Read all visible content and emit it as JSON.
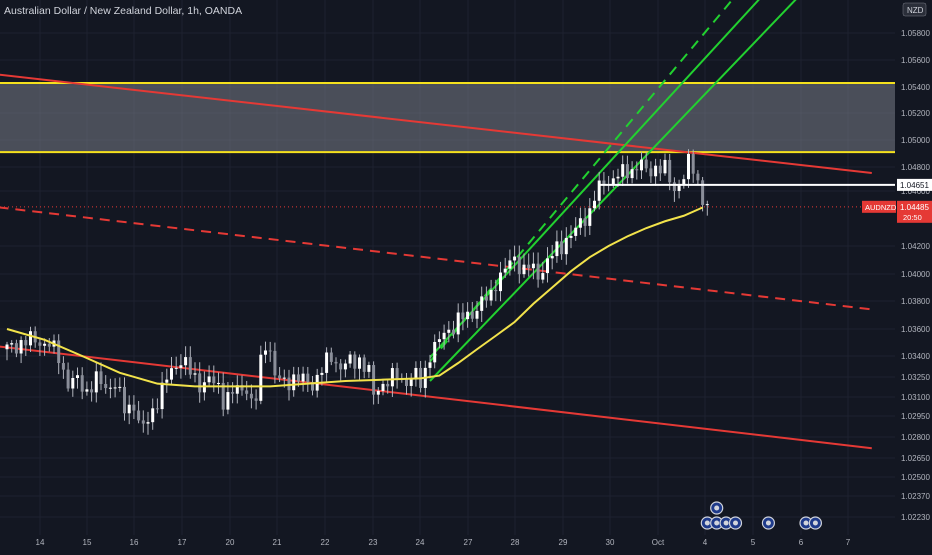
{
  "title": "Australian Dollar / New Zealand Dollar, 1h, OANDA",
  "currency_badge": "NZD",
  "chart_data": {
    "type": "candlestick",
    "symbol": "AUDNZD",
    "interval": "1h",
    "source": "OANDA",
    "currency": "NZD",
    "y_range": [
      1.0215,
      1.062
    ],
    "y_ticks": [
      "1.05800",
      "1.05600",
      "1.05400",
      "1.05200",
      "1.05000",
      "1.04800",
      "1.04600",
      "1.04200",
      "1.04000",
      "1.03800",
      "1.03600",
      "1.03400",
      "1.03250",
      "1.03100",
      "1.02950",
      "1.02800",
      "1.02650",
      "1.02500",
      "1.02370",
      "1.02230"
    ],
    "x_ticks": [
      "14",
      "15",
      "16",
      "17",
      "20",
      "21",
      "22",
      "23",
      "24",
      "27",
      "28",
      "29",
      "30",
      "Oct",
      "4",
      "5",
      "6",
      "7"
    ],
    "price_labels": {
      "horizontal_level": "1.04651",
      "current_symbol": "AUDNZD",
      "current_price": "1.04485",
      "countdown": "20:50"
    },
    "resistance_zone": [
      1.0491,
      1.0543
    ],
    "close_path": [
      [
        0,
        1.0345
      ],
      [
        3,
        1.035
      ],
      [
        6,
        1.0352
      ],
      [
        9,
        1.0348
      ],
      [
        11,
        1.034
      ],
      [
        13,
        1.032
      ],
      [
        15,
        1.0322
      ],
      [
        17,
        1.0315
      ],
      [
        19,
        1.0322
      ],
      [
        21,
        1.0318
      ],
      [
        23,
        1.032
      ],
      [
        25,
        1.03
      ],
      [
        27,
        1.0305
      ],
      [
        28,
        1.029
      ],
      [
        29,
        1.0285
      ],
      [
        31,
        1.03
      ],
      [
        33,
        1.0315
      ],
      [
        35,
        1.033
      ],
      [
        37,
        1.0338
      ],
      [
        39,
        1.0328
      ],
      [
        41,
        1.032
      ],
      [
        43,
        1.0322
      ],
      [
        45,
        1.0318
      ],
      [
        46,
        1.0308
      ],
      [
        47,
        1.031
      ],
      [
        49,
        1.0315
      ],
      [
        51,
        1.0318
      ],
      [
        52,
        1.0305
      ],
      [
        53,
        1.0308
      ],
      [
        54,
        1.0335
      ],
      [
        55,
        1.035
      ],
      [
        56,
        1.0345
      ],
      [
        57,
        1.0325
      ],
      [
        59,
        1.032
      ],
      [
        61,
        1.0325
      ],
      [
        63,
        1.0322
      ],
      [
        65,
        1.032
      ],
      [
        67,
        1.033
      ],
      [
        69,
        1.034
      ],
      [
        71,
        1.0332
      ],
      [
        73,
        1.0335
      ],
      [
        75,
        1.0338
      ],
      [
        77,
        1.0328
      ],
      [
        78,
        1.031
      ],
      [
        79,
        1.0318
      ],
      [
        81,
        1.0322
      ],
      [
        83,
        1.0325
      ],
      [
        85,
        1.0322
      ],
      [
        87,
        1.0325
      ],
      [
        88,
        1.032
      ],
      [
        89,
        1.033
      ],
      [
        90,
        1.0342
      ],
      [
        92,
        1.035
      ],
      [
        93,
        1.0358
      ],
      [
        95,
        1.0362
      ],
      [
        97,
        1.0368
      ],
      [
        99,
        1.0372
      ],
      [
        101,
        1.0378
      ],
      [
        103,
        1.0385
      ],
      [
        104,
        1.0395
      ],
      [
        106,
        1.0402
      ],
      [
        107,
        1.0408
      ],
      [
        108,
        1.0412
      ],
      [
        110,
        1.0402
      ],
      [
        111,
        1.0405
      ],
      [
        113,
        1.04
      ],
      [
        115,
        1.0408
      ],
      [
        117,
        1.0418
      ],
      [
        119,
        1.0425
      ],
      [
        121,
        1.043
      ],
      [
        122,
        1.0438
      ],
      [
        124,
        1.0445
      ],
      [
        125,
        1.0455
      ],
      [
        126,
        1.0462
      ],
      [
        127,
        1.0468
      ],
      [
        129,
        1.047
      ],
      [
        131,
        1.0475
      ],
      [
        133,
        1.0478
      ],
      [
        135,
        1.0482
      ],
      [
        136,
        1.0475
      ],
      [
        138,
        1.048
      ],
      [
        140,
        1.0478
      ],
      [
        141,
        1.0468
      ],
      [
        142,
        1.0462
      ],
      [
        144,
        1.0472
      ],
      [
        145,
        1.0482
      ],
      [
        146,
        1.0478
      ],
      [
        147,
        1.0468
      ],
      [
        148,
        1.0455
      ],
      [
        149,
        1.0448
      ]
    ],
    "overlays": [
      {
        "type": "moving_average",
        "color": "#f2e34b",
        "points": [
          [
            0,
            1.036
          ],
          [
            8,
            1.0352
          ],
          [
            16,
            1.034
          ],
          [
            24,
            1.0328
          ],
          [
            32,
            1.032
          ],
          [
            40,
            1.0318
          ],
          [
            48,
            1.0318
          ],
          [
            56,
            1.0318
          ],
          [
            64,
            1.032
          ],
          [
            72,
            1.0322
          ],
          [
            80,
            1.0323
          ],
          [
            88,
            1.0324
          ],
          [
            92,
            1.0326
          ],
          [
            96,
            1.0335
          ],
          [
            100,
            1.0345
          ],
          [
            104,
            1.0355
          ],
          [
            108,
            1.0365
          ],
          [
            112,
            1.0378
          ],
          [
            116,
            1.039
          ],
          [
            120,
            1.0402
          ],
          [
            124,
            1.0412
          ],
          [
            128,
            1.042
          ],
          [
            132,
            1.0427
          ],
          [
            136,
            1.0433
          ],
          [
            140,
            1.0438
          ],
          [
            144,
            1.0442
          ],
          [
            148,
            1.0448
          ]
        ]
      },
      {
        "type": "trendline",
        "color": "#e53935",
        "style": "solid",
        "from": [
          -9,
          1.0552
        ],
        "to": [
          184,
          1.0475
        ]
      },
      {
        "type": "trendline",
        "color": "#e53935",
        "style": "dashed",
        "from": [
          -9,
          1.0451
        ],
        "to": [
          184,
          1.0374
        ]
      },
      {
        "type": "trendline",
        "color": "#e53935",
        "style": "solid",
        "from": [
          -9,
          1.035
        ],
        "to": [
          184,
          1.0272
        ]
      },
      {
        "type": "channel",
        "color": "#22d130",
        "style": "solid",
        "from": [
          90,
          1.0339
        ],
        "to": [
          164,
          1.062
        ]
      },
      {
        "type": "channel",
        "color": "#22d130",
        "style": "dashed",
        "from": [
          90,
          1.0336
        ],
        "to": [
          158,
          1.062
        ]
      },
      {
        "type": "channel",
        "color": "#22d130",
        "style": "solid",
        "from": [
          90,
          1.0322
        ],
        "to": [
          172,
          1.062
        ]
      },
      {
        "type": "horizontal_level",
        "color": "#ffffff",
        "value": 1.04651
      }
    ],
    "events": [
      [
        151,
        "top"
      ],
      [
        149,
        "bottom"
      ],
      [
        151,
        "bottom"
      ],
      [
        153,
        "bottom"
      ],
      [
        155,
        "bottom"
      ],
      [
        162,
        "bottom"
      ],
      [
        170,
        "bottom"
      ],
      [
        172,
        "bottom"
      ]
    ]
  }
}
